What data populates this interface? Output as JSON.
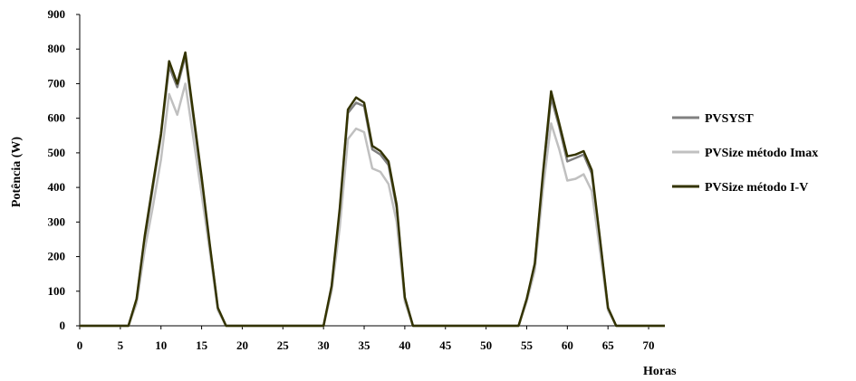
{
  "chart_data": {
    "type": "line",
    "xlabel": "Horas",
    "ylabel": "Potência (W)",
    "xlim": [
      0,
      72
    ],
    "ylim": [
      0,
      900
    ],
    "x_ticks": [
      0,
      5,
      10,
      15,
      20,
      25,
      30,
      35,
      40,
      45,
      50,
      55,
      60,
      65,
      70
    ],
    "y_ticks": [
      0,
      100,
      200,
      300,
      400,
      500,
      600,
      700,
      800,
      900
    ],
    "grid": false,
    "legend_position": "right",
    "x": [
      0,
      1,
      2,
      3,
      4,
      5,
      6,
      7,
      8,
      9,
      10,
      11,
      12,
      13,
      14,
      15,
      16,
      17,
      18,
      19,
      20,
      21,
      22,
      23,
      24,
      25,
      26,
      27,
      28,
      29,
      30,
      31,
      32,
      33,
      34,
      35,
      36,
      37,
      38,
      39,
      40,
      41,
      42,
      43,
      44,
      45,
      46,
      47,
      48,
      49,
      50,
      51,
      52,
      53,
      54,
      55,
      56,
      57,
      58,
      59,
      60,
      61,
      62,
      63,
      64,
      65,
      66,
      67,
      68,
      69,
      70,
      71,
      72
    ],
    "series": [
      {
        "name": "PVSYST",
        "color": "#808080",
        "values": [
          0,
          0,
          0,
          0,
          0,
          0,
          0,
          75,
          250,
          400,
          550,
          750,
          690,
          780,
          600,
          420,
          230,
          50,
          0,
          0,
          0,
          0,
          0,
          0,
          0,
          0,
          0,
          0,
          0,
          0,
          0,
          110,
          330,
          615,
          645,
          635,
          510,
          495,
          465,
          340,
          80,
          0,
          0,
          0,
          0,
          0,
          0,
          0,
          0,
          0,
          0,
          0,
          0,
          0,
          0,
          75,
          175,
          430,
          660,
          575,
          475,
          485,
          495,
          440,
          250,
          50,
          0,
          0,
          0,
          0,
          0,
          0,
          0
        ]
      },
      {
        "name": "PVSize método Imax",
        "color": "#c0c0c0",
        "values": [
          0,
          0,
          0,
          0,
          0,
          0,
          0,
          65,
          220,
          345,
          480,
          670,
          610,
          700,
          540,
          380,
          215,
          45,
          0,
          0,
          0,
          0,
          0,
          0,
          0,
          0,
          0,
          0,
          0,
          0,
          0,
          100,
          285,
          540,
          570,
          560,
          455,
          445,
          410,
          300,
          70,
          0,
          0,
          0,
          0,
          0,
          0,
          0,
          0,
          0,
          0,
          0,
          0,
          0,
          0,
          70,
          160,
          395,
          585,
          510,
          420,
          425,
          438,
          390,
          220,
          45,
          0,
          0,
          0,
          0,
          0,
          0,
          0
        ]
      },
      {
        "name": "PVSize método I-V",
        "color": "#333300",
        "values": [
          0,
          0,
          0,
          0,
          0,
          0,
          0,
          78,
          260,
          410,
          555,
          765,
          700,
          790,
          610,
          430,
          235,
          52,
          0,
          0,
          0,
          0,
          0,
          0,
          0,
          0,
          0,
          0,
          0,
          0,
          0,
          115,
          340,
          625,
          660,
          645,
          520,
          505,
          475,
          350,
          82,
          0,
          0,
          0,
          0,
          0,
          0,
          0,
          0,
          0,
          0,
          0,
          0,
          0,
          0,
          78,
          180,
          440,
          678,
          585,
          490,
          495,
          505,
          450,
          255,
          52,
          0,
          0,
          0,
          0,
          0,
          0,
          0
        ]
      }
    ]
  }
}
